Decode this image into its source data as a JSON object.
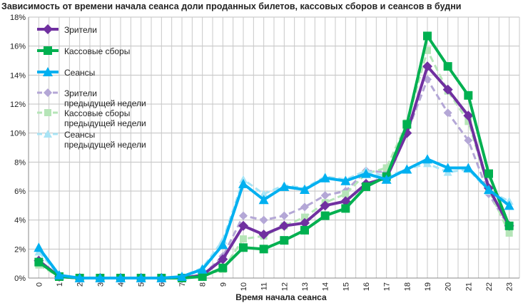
{
  "chart_data": {
    "type": "line",
    "title": "Зависимость от времени начала сеанса доли проданных билетов, кассовых сборов и сеансов в будни",
    "xlabel": "Время начала сеанса",
    "ylabel": "",
    "ylim": [
      0,
      18
    ],
    "yticks": [
      "0%",
      "2%",
      "4%",
      "6%",
      "8%",
      "10%",
      "12%",
      "14%",
      "16%",
      "18%"
    ],
    "x": [
      "0",
      "1",
      "2",
      "3",
      "4",
      "5",
      "6",
      "7",
      "8",
      "9",
      "10",
      "11",
      "12",
      "13",
      "14",
      "15",
      "16",
      "17",
      "18",
      "19",
      "20",
      "21",
      "22",
      "23"
    ],
    "grid": true,
    "legend_position": "top-left",
    "series": [
      {
        "name": "Зрители",
        "name2": "",
        "color": "#7030a0",
        "marker": "diamond",
        "dashed": false,
        "values": [
          1.2,
          0.1,
          0,
          0,
          0,
          0,
          0,
          0,
          0.2,
          1.3,
          3.6,
          3.0,
          3.6,
          3.8,
          5.0,
          5.3,
          6.5,
          6.9,
          10.0,
          14.6,
          13.0,
          11.2,
          6.2,
          3.6
        ]
      },
      {
        "name": "Кассовые сборы",
        "name2": "",
        "color": "#00b050",
        "marker": "square",
        "dashed": false,
        "values": [
          1.1,
          0.1,
          0,
          0,
          0,
          0,
          0,
          0,
          0.1,
          0.7,
          2.1,
          2.0,
          2.6,
          3.3,
          4.3,
          4.8,
          6.3,
          7.0,
          10.6,
          16.7,
          14.6,
          12.6,
          7.2,
          3.6
        ]
      },
      {
        "name": "Сеансы",
        "name2": "",
        "color": "#00b0f0",
        "marker": "triangle",
        "dashed": false,
        "values": [
          2.1,
          0.2,
          0,
          0,
          0,
          0,
          0,
          0.1,
          0.6,
          2.3,
          6.5,
          5.4,
          6.3,
          6.1,
          6.9,
          6.7,
          7.2,
          6.8,
          7.5,
          8.2,
          7.6,
          7.6,
          6.1,
          5.0
        ]
      },
      {
        "name": "Зрители",
        "name2": "предыдущей недели",
        "color": "#b4a7d6",
        "marker": "diamond",
        "dashed": true,
        "values": [
          1.2,
          0.1,
          0,
          0,
          0,
          0,
          0,
          0,
          0.2,
          1.5,
          4.3,
          4.0,
          4.3,
          4.9,
          5.7,
          6.0,
          7.4,
          7.3,
          10.0,
          13.7,
          11.4,
          9.5,
          5.8,
          3.5
        ]
      },
      {
        "name": "Кассовые сборы",
        "name2": "предыдущей недели",
        "color": "#b6e5b8",
        "marker": "square",
        "dashed": true,
        "values": [
          0.9,
          0.1,
          0,
          0,
          0,
          0,
          0,
          0,
          0.1,
          0.6,
          2.7,
          2.9,
          3.6,
          4.2,
          5.2,
          5.8,
          7.2,
          7.6,
          10.7,
          15.7,
          12.9,
          10.8,
          6.1,
          3.1
        ]
      },
      {
        "name": "Сеансы",
        "name2": "предыдущей недели",
        "color": "#a9e4f5",
        "marker": "triangle",
        "dashed": true,
        "values": [
          1.8,
          0.2,
          0,
          0,
          0,
          0,
          0,
          0.1,
          0.7,
          2.6,
          6.8,
          5.8,
          6.4,
          6.2,
          7.0,
          6.8,
          7.4,
          7.0,
          7.5,
          7.9,
          7.3,
          7.5,
          6.0,
          5.3
        ]
      }
    ]
  }
}
